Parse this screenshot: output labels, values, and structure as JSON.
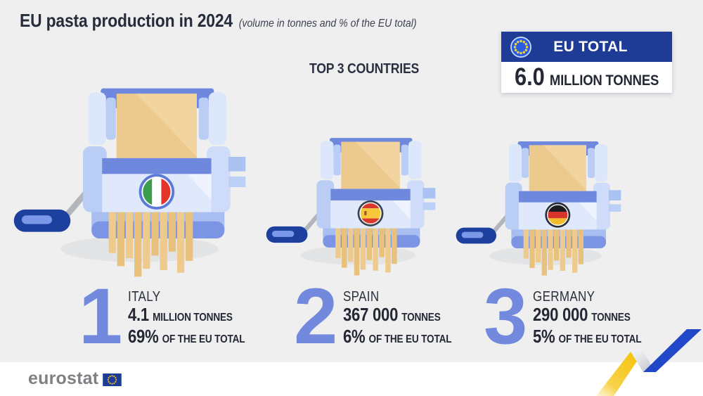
{
  "title": {
    "main": "EU pasta production in 2024",
    "subtitle": "(volume in tonnes and % of the EU total)"
  },
  "section_heading": "TOP 3 COUNTRIES",
  "eu_total": {
    "label": "EU TOTAL",
    "value": "6.0",
    "unit": "MILLION TONNES"
  },
  "countries": [
    {
      "rank": "1",
      "name": "ITALY",
      "value": "4.1",
      "unit": "MILLION TONNES",
      "share": "69%",
      "share_label": "OF THE EU TOTAL",
      "flag": {
        "name": "italy-flag",
        "orientation": "vertical",
        "colors": [
          "#3d9b4e",
          "#ffffff",
          "#e3342b"
        ],
        "ratios": [
          0.333,
          0.334,
          0.333
        ],
        "ring": "#5b7ad8"
      }
    },
    {
      "rank": "2",
      "name": "SPAIN",
      "value": "367 000",
      "unit": "TONNES",
      "share": "6%",
      "share_label": "OF THE EU TOTAL",
      "flag": {
        "name": "spain-flag",
        "orientation": "horizontal",
        "colors": [
          "#d8372c",
          "#f6c83a",
          "#d8372c"
        ],
        "ratios": [
          0.25,
          0.5,
          0.25
        ],
        "ring": "#3c4250",
        "emblem": "#a05a2c"
      }
    },
    {
      "rank": "3",
      "name": "GERMANY",
      "value": "290 000",
      "unit": "TONNES",
      "share": "5%",
      "share_label": "OF THE EU TOTAL",
      "flag": {
        "name": "germany-flag",
        "orientation": "horizontal",
        "colors": [
          "#1b1c20",
          "#d8352c",
          "#f2bc2a"
        ],
        "ratios": [
          0.333,
          0.334,
          0.333
        ],
        "ring": "#2a2d36"
      }
    }
  ],
  "footer": {
    "brand": "eurostat"
  },
  "colors": {
    "background": "#efeff0",
    "footer_background": "#ffffff",
    "text_dark": "#262c3a",
    "rank_number_blue": "#7289dd",
    "eu_header_blue": "#1e3c96",
    "machine_blue": "#6d88dc",
    "machine_light_blue": "#dfe9fc",
    "dough_tan": "#ecca8e",
    "handle_navy": "#1d3f9e",
    "ribbon_yellow": "#f5c413",
    "ribbon_blue": "#2148c8",
    "eu_stars_yellow": "#e9d53c"
  },
  "chart_data": {
    "type": "bar",
    "title": "EU pasta production in 2024",
    "subtitle": "(volume in tonnes and % of the EU total)",
    "categories": [
      "Italy",
      "Spain",
      "Germany"
    ],
    "values": [
      4100000,
      367000,
      290000
    ],
    "shares_pct_of_eu_total": [
      69,
      6,
      5
    ],
    "eu_total_tonnes": 6000000,
    "unit": "tonnes",
    "legend_position": "none",
    "grid": false
  }
}
